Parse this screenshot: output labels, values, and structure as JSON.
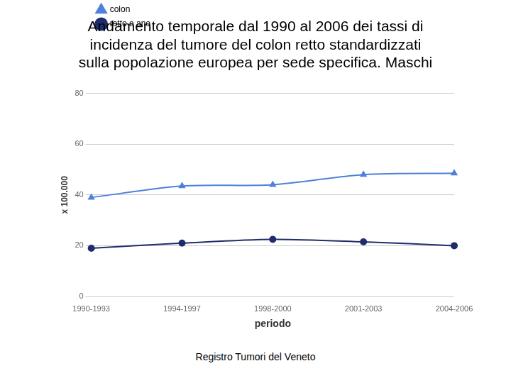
{
  "chart_data": {
    "type": "line",
    "title": [
      "Andamento temporale dal 1990 al 2006 dei tassi di",
      "incidenza del tumore del colon retto standardizzati",
      "sulla popolazione europea per sede specifica. Maschi"
    ],
    "x_label": "periodo",
    "y_label": "x 100.000",
    "source": "Registro Tumori del Veneto",
    "categories": [
      "1990-1993",
      "1994-1997",
      "1998-2000",
      "2001-2003",
      "2004-2006"
    ],
    "series": [
      {
        "name": "colon",
        "color": "#4f81d9",
        "marker": "triangle",
        "values": [
          39,
          43.5,
          44,
          48,
          48.5
        ]
      },
      {
        "name": "retto e ano",
        "color": "#1f2d6b",
        "marker": "circle",
        "values": [
          19,
          21,
          22.5,
          21.5,
          20
        ]
      }
    ],
    "ylim": [
      0,
      80
    ],
    "yticks": [
      0,
      20,
      40,
      60,
      80
    ],
    "grid": true,
    "legend": "upper left"
  }
}
